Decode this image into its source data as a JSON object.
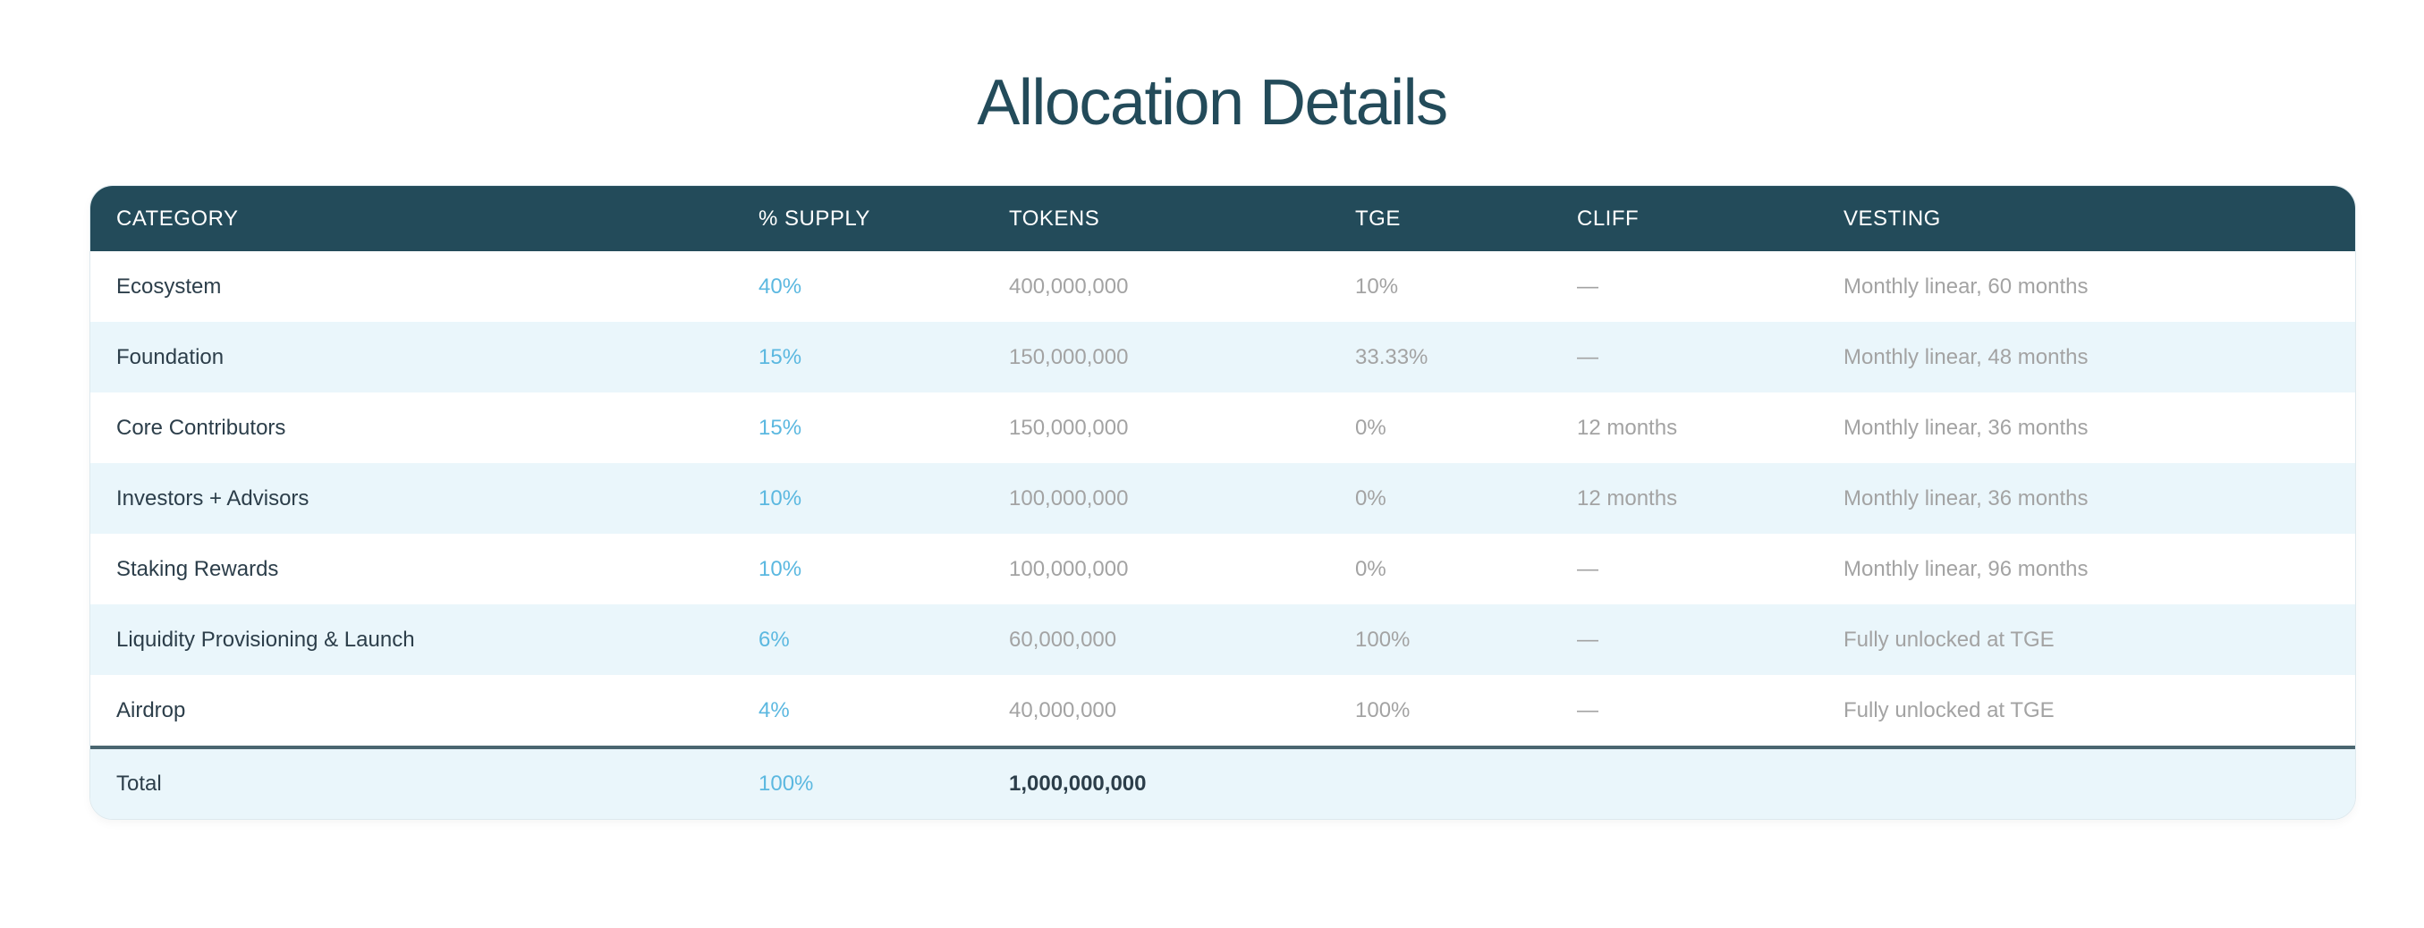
{
  "title": "Allocation Details",
  "columns": [
    "CATEGORY",
    "% SUPPLY",
    "TOKENS",
    "TGE",
    "CLIFF",
    "VESTING"
  ],
  "rows": [
    {
      "category": "Ecosystem",
      "supply": "40%",
      "tokens": "400,000,000",
      "tge": "10%",
      "cliff": "—",
      "vesting": "Monthly linear, 60 months"
    },
    {
      "category": "Foundation",
      "supply": "15%",
      "tokens": "150,000,000",
      "tge": "33.33%",
      "cliff": "—",
      "vesting": "Monthly linear, 48 months"
    },
    {
      "category": "Core Contributors",
      "supply": "15%",
      "tokens": "150,000,000",
      "tge": "0%",
      "cliff": "12 months",
      "vesting": "Monthly linear, 36 months"
    },
    {
      "category": "Investors + Advisors",
      "supply": "10%",
      "tokens": "100,000,000",
      "tge": "0%",
      "cliff": "12 months",
      "vesting": "Monthly linear, 36 months"
    },
    {
      "category": "Staking Rewards",
      "supply": "10%",
      "tokens": "100,000,000",
      "tge": "0%",
      "cliff": "—",
      "vesting": "Monthly linear, 96 months"
    },
    {
      "category": "Liquidity Provisioning & Launch",
      "supply": "6%",
      "tokens": "60,000,000",
      "tge": "100%",
      "cliff": "—",
      "vesting": "Fully unlocked at TGE"
    },
    {
      "category": "Airdrop",
      "supply": "4%",
      "tokens": "40,000,000",
      "tge": "100%",
      "cliff": "—",
      "vesting": "Fully unlocked at TGE"
    }
  ],
  "total": {
    "category": "Total",
    "supply": "100%",
    "tokens": "1,000,000,000"
  },
  "colors": {
    "header": "#234b5a",
    "accent": "#5bb8e0",
    "alt_row": "#eaf6fb"
  }
}
